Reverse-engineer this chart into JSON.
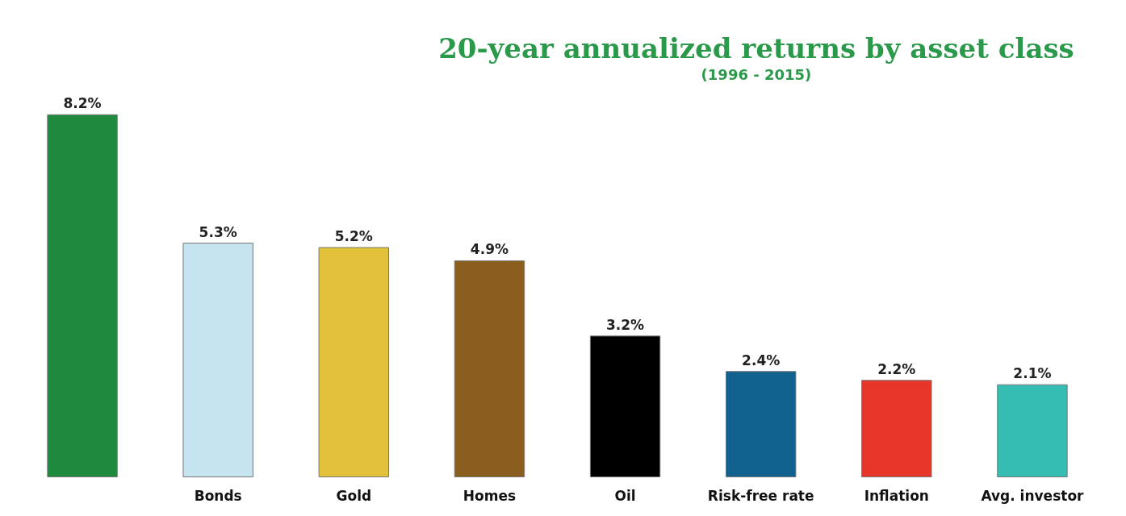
{
  "chart_data": {
    "type": "bar",
    "title": "20-year annualized returns by asset class",
    "subtitle": "(1996 - 2015)",
    "categories": [
      null,
      "Bonds",
      "Gold",
      "Homes",
      "Oil",
      "Risk-free rate",
      "Inflation",
      "Avg. investor"
    ],
    "values": [
      8.2,
      5.3,
      5.2,
      4.9,
      3.2,
      2.4,
      2.2,
      2.1
    ],
    "colors": [
      "#1e8a3e",
      "#c5e4ef",
      "#e2c23a",
      "#8a5e1e",
      "#000000",
      "#11618f",
      "#e8352a",
      "#35bdb2"
    ],
    "value_labels": [
      "8.2%",
      "5.3%",
      "5.2%",
      "4.9%",
      "3.2%",
      "2.4%",
      "2.2%",
      "2.1%"
    ]
  }
}
